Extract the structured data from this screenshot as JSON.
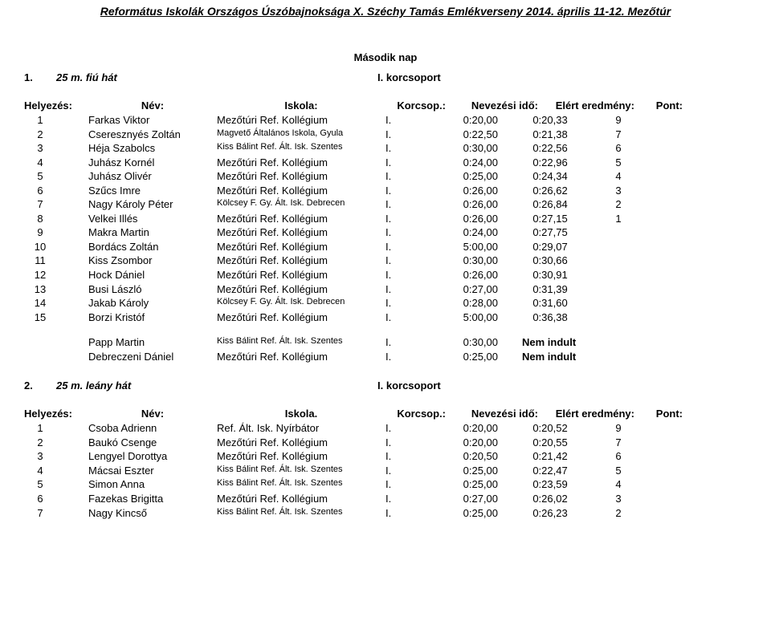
{
  "header": "Református Iskolák Országos Úszóbajnoksága X. Széchy Tamás Emlékverseny 2014. április 11-12. Mezőtúr",
  "day_label": "Második nap",
  "columns": {
    "place": "Helyezés:",
    "name": "Név:",
    "school": "Iskola:",
    "school2": "Iskola.",
    "kcs": "Korcsop.:",
    "nev": "Nevezési idő:",
    "res": "Elért eredmény:",
    "pt": "Pont:"
  },
  "events": [
    {
      "num": "1.",
      "title": "25 m. fiú hát",
      "group": "I. korcsoport",
      "rows": [
        {
          "p": "1",
          "name": "Farkas Viktor",
          "school": "Mezőtúri Ref. Kollégium",
          "k": "I.",
          "n": "0:20,00",
          "r": "0:20,33",
          "pt": "9"
        },
        {
          "p": "2",
          "name": "Cseresznyés Zoltán",
          "school": "Magvető Általános Iskola, Gyula",
          "small": true,
          "k": "I.",
          "n": "0:22,50",
          "r": "0:21,38",
          "pt": "7"
        },
        {
          "p": "3",
          "name": "Héja Szabolcs",
          "school": "Kiss Bálint Ref. Ált. Isk. Szentes",
          "small": true,
          "k": "I.",
          "n": "0:30,00",
          "r": "0:22,56",
          "pt": "6"
        },
        {
          "p": "4",
          "name": "Juhász Kornél",
          "school": "Mezőtúri Ref. Kollégium",
          "k": "I.",
          "n": "0:24,00",
          "r": "0:22,96",
          "pt": "5"
        },
        {
          "p": "5",
          "name": "Juhász Olivér",
          "school": "Mezőtúri Ref. Kollégium",
          "k": "I.",
          "n": "0:25,00",
          "r": "0:24,34",
          "pt": "4"
        },
        {
          "p": "6",
          "name": "Szűcs Imre",
          "school": "Mezőtúri Ref. Kollégium",
          "k": "I.",
          "n": "0:26,00",
          "r": "0:26,62",
          "pt": "3"
        },
        {
          "p": "7",
          "name": "Nagy Károly Péter",
          "school": "Kölcsey F. Gy. Ált. Isk. Debrecen",
          "small": true,
          "k": "I.",
          "n": "0:26,00",
          "r": "0:26,84",
          "pt": "2"
        },
        {
          "p": "8",
          "name": "Velkei Illés",
          "school": "Mezőtúri Ref. Kollégium",
          "k": "I.",
          "n": "0:26,00",
          "r": "0:27,15",
          "pt": "1"
        },
        {
          "p": "9",
          "name": "Makra Martin",
          "school": "Mezőtúri Ref. Kollégium",
          "k": "I.",
          "n": "0:24,00",
          "r": "0:27,75",
          "pt": ""
        },
        {
          "p": "10",
          "name": "Bordács Zoltán",
          "school": "Mezőtúri Ref. Kollégium",
          "k": "I.",
          "n": "5:00,00",
          "r": "0:29,07",
          "pt": ""
        },
        {
          "p": "11",
          "name": "Kiss Zsombor",
          "school": "Mezőtúri Ref. Kollégium",
          "k": "I.",
          "n": "0:30,00",
          "r": "0:30,66",
          "pt": ""
        },
        {
          "p": "12",
          "name": "Hock Dániel",
          "school": "Mezőtúri Ref. Kollégium",
          "k": "I.",
          "n": "0:26,00",
          "r": "0:30,91",
          "pt": ""
        },
        {
          "p": "13",
          "name": "Busi László",
          "school": "Mezőtúri Ref. Kollégium",
          "k": "I.",
          "n": "0:27,00",
          "r": "0:31,39",
          "pt": ""
        },
        {
          "p": "14",
          "name": "Jakab Károly",
          "school": "Kölcsey F. Gy. Ált. Isk. Debrecen",
          "small": true,
          "k": "I.",
          "n": "0:28,00",
          "r": "0:31,60",
          "pt": ""
        },
        {
          "p": "15",
          "name": "Borzi Kristóf",
          "school": "Mezőtúri Ref. Kollégium",
          "k": "I.",
          "n": "5:00,00",
          "r": "0:36,38",
          "pt": ""
        }
      ],
      "dns": [
        {
          "name": "Papp Martin",
          "school": "Kiss Bálint Ref. Ált. Isk. Szentes",
          "small": true,
          "k": "I.",
          "n": "0:30,00",
          "r": "Nem indult"
        },
        {
          "name": "Debreczeni Dániel",
          "school": "Mezőtúri Ref. Kollégium",
          "k": "I.",
          "n": "0:25,00",
          "r": "Nem indult"
        }
      ]
    },
    {
      "num": "2.",
      "title": "25 m. leány hát",
      "group": "I. korcsoport",
      "rows": [
        {
          "p": "1",
          "name": "Csoba Adrienn",
          "school": "Ref. Ált. Isk. Nyírbátor",
          "k": "I.",
          "n": "0:20,00",
          "r": "0:20,52",
          "pt": "9"
        },
        {
          "p": "2",
          "name": "Baukó Csenge",
          "school": "Mezőtúri Ref. Kollégium",
          "k": "I.",
          "n": "0:20,00",
          "r": "0:20,55",
          "pt": "7"
        },
        {
          "p": "3",
          "name": "Lengyel Dorottya",
          "school": "Mezőtúri Ref. Kollégium",
          "k": "I.",
          "n": "0:20,50",
          "r": "0:21,42",
          "pt": "6"
        },
        {
          "p": "4",
          "name": "Mácsai Eszter",
          "school": "Kiss Bálint Ref. Ált. Isk. Szentes",
          "small": true,
          "k": "I.",
          "n": "0:25,00",
          "r": "0:22,47",
          "pt": "5"
        },
        {
          "p": "5",
          "name": "Simon Anna",
          "school": "Kiss Bálint Ref. Ált. Isk. Szentes",
          "small": true,
          "k": "I.",
          "n": "0:25,00",
          "r": "0:23,59",
          "pt": "4"
        },
        {
          "p": "6",
          "name": "Fazekas Brigitta",
          "school": "Mezőtúri Ref. Kollégium",
          "k": "I.",
          "n": "0:27,00",
          "r": "0:26,02",
          "pt": "3"
        },
        {
          "p": "7",
          "name": "Nagy Kincső",
          "school": "Kiss Bálint Ref. Ált. Isk. Szentes",
          "small": true,
          "k": "I.",
          "n": "0:25,00",
          "r": "0:26,23",
          "pt": "2"
        }
      ]
    }
  ]
}
